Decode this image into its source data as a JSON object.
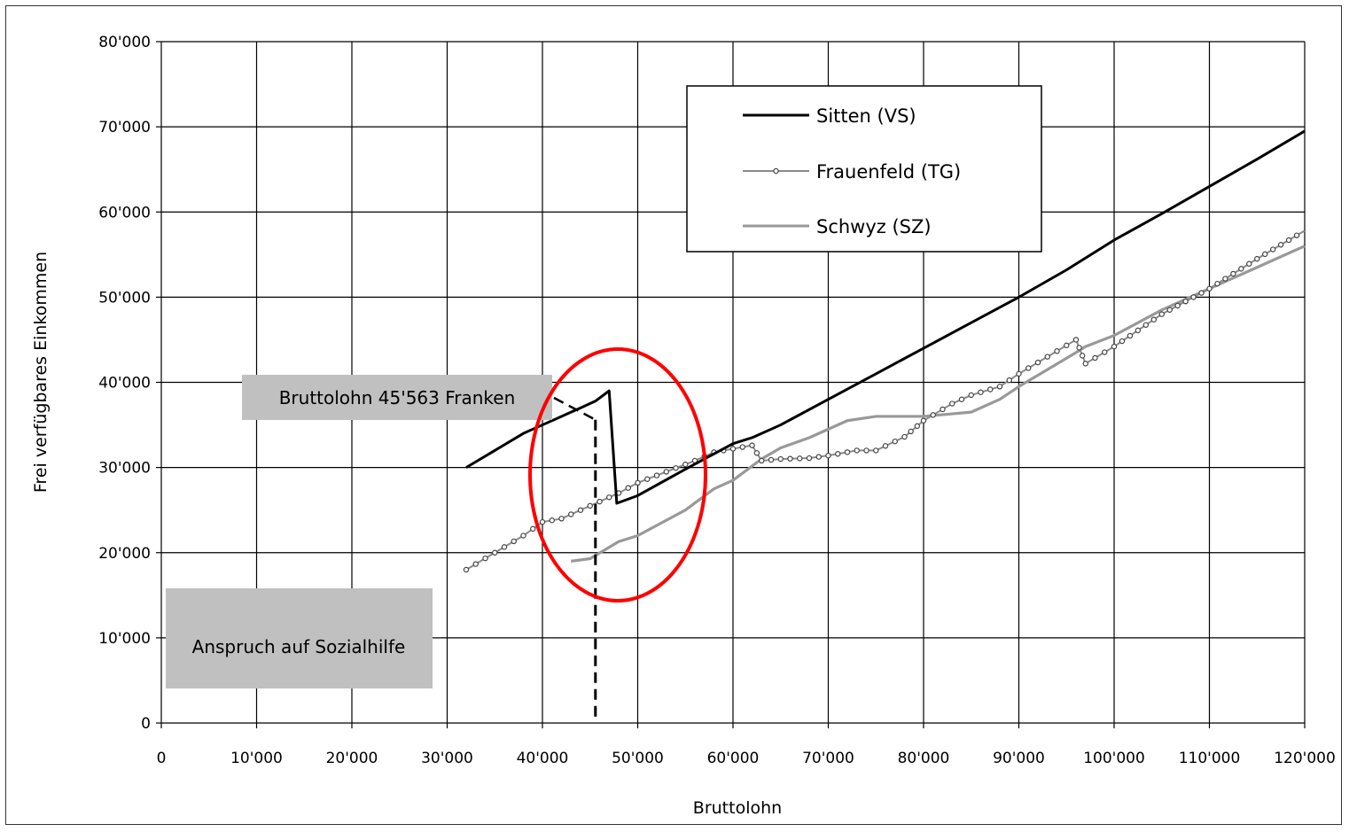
{
  "chart_data": {
    "type": "line",
    "xlabel": "Bruttolohn",
    "ylabel": "Frei verfügbares Einkommen",
    "xlim": [
      0,
      120000
    ],
    "ylim": [
      0,
      80000
    ],
    "x_ticks": [
      "0",
      "10'000",
      "20'000",
      "30'000",
      "40'000",
      "50'000",
      "60'000",
      "70'000",
      "80'000",
      "90'000",
      "100'000",
      "110'000",
      "120'000"
    ],
    "y_ticks": [
      "0",
      "10'000",
      "20'000",
      "30'000",
      "40'000",
      "50'000",
      "60'000",
      "70'000",
      "80'000"
    ],
    "grid": true,
    "legend_position": "top-right",
    "series": [
      {
        "name": "Sitten (VS)",
        "color": "#000000",
        "style": "solid",
        "points": [
          [
            32000,
            30000
          ],
          [
            35000,
            32000
          ],
          [
            38000,
            34000
          ],
          [
            40000,
            35000
          ],
          [
            42000,
            36000
          ],
          [
            44000,
            37000
          ],
          [
            45563,
            37800
          ],
          [
            47000,
            39000
          ],
          [
            47800,
            25800
          ],
          [
            50000,
            26700
          ],
          [
            55000,
            29800
          ],
          [
            60000,
            32800
          ],
          [
            62000,
            33500
          ],
          [
            65000,
            35000
          ],
          [
            70000,
            38000
          ],
          [
            75000,
            41000
          ],
          [
            80000,
            44000
          ],
          [
            85000,
            47000
          ],
          [
            90000,
            50000
          ],
          [
            95000,
            53200
          ],
          [
            100000,
            56700
          ],
          [
            105000,
            59800
          ],
          [
            110000,
            63000
          ],
          [
            115000,
            66200
          ],
          [
            120000,
            69500
          ]
        ]
      },
      {
        "name": "Frauenfeld (TG)",
        "color": "#8a8a8a",
        "style": "dotted-markers",
        "points": [
          [
            32000,
            18000
          ],
          [
            35000,
            20000
          ],
          [
            38000,
            22000
          ],
          [
            40000,
            23600
          ],
          [
            42000,
            24000
          ],
          [
            45000,
            25500
          ],
          [
            48000,
            27000
          ],
          [
            50000,
            28200
          ],
          [
            53000,
            29500
          ],
          [
            56000,
            30800
          ],
          [
            58000,
            31800
          ],
          [
            60000,
            32200
          ],
          [
            62000,
            32600
          ],
          [
            63000,
            30800
          ],
          [
            65000,
            31000
          ],
          [
            68000,
            31100
          ],
          [
            70000,
            31400
          ],
          [
            73000,
            32000
          ],
          [
            75000,
            32000
          ],
          [
            78000,
            33600
          ],
          [
            80000,
            35500
          ],
          [
            83000,
            37500
          ],
          [
            85000,
            38500
          ],
          [
            88000,
            39500
          ],
          [
            90000,
            41000
          ],
          [
            93000,
            43000
          ],
          [
            96000,
            45000
          ],
          [
            97000,
            42200
          ],
          [
            100000,
            44200
          ],
          [
            105000,
            48000
          ],
          [
            110000,
            51000
          ],
          [
            115000,
            54500
          ],
          [
            120000,
            57800
          ]
        ]
      },
      {
        "name": "Schwyz (SZ)",
        "color": "#999999",
        "style": "solid",
        "points": [
          [
            43000,
            19000
          ],
          [
            45000,
            19300
          ],
          [
            48000,
            21300
          ],
          [
            50000,
            22000
          ],
          [
            55000,
            25000
          ],
          [
            58000,
            27500
          ],
          [
            60000,
            28500
          ],
          [
            63000,
            31000
          ],
          [
            65000,
            32300
          ],
          [
            68000,
            33500
          ],
          [
            70000,
            34500
          ],
          [
            72000,
            35500
          ],
          [
            75000,
            36000
          ],
          [
            78000,
            36000
          ],
          [
            80000,
            36000
          ],
          [
            83000,
            36300
          ],
          [
            85000,
            36500
          ],
          [
            88000,
            38000
          ],
          [
            90000,
            39500
          ],
          [
            93000,
            41500
          ],
          [
            96000,
            43500
          ],
          [
            97000,
            44200
          ],
          [
            100000,
            45500
          ],
          [
            105000,
            48500
          ],
          [
            110000,
            51000
          ],
          [
            115000,
            53500
          ],
          [
            120000,
            56000
          ]
        ]
      }
    ],
    "annotations": {
      "label_box": "Bruttolohn 45'563 Franken",
      "label_x": 45563,
      "social_box": "Anspruch auf Sozialhilfe",
      "circle_center": [
        48000,
        28500
      ]
    }
  }
}
